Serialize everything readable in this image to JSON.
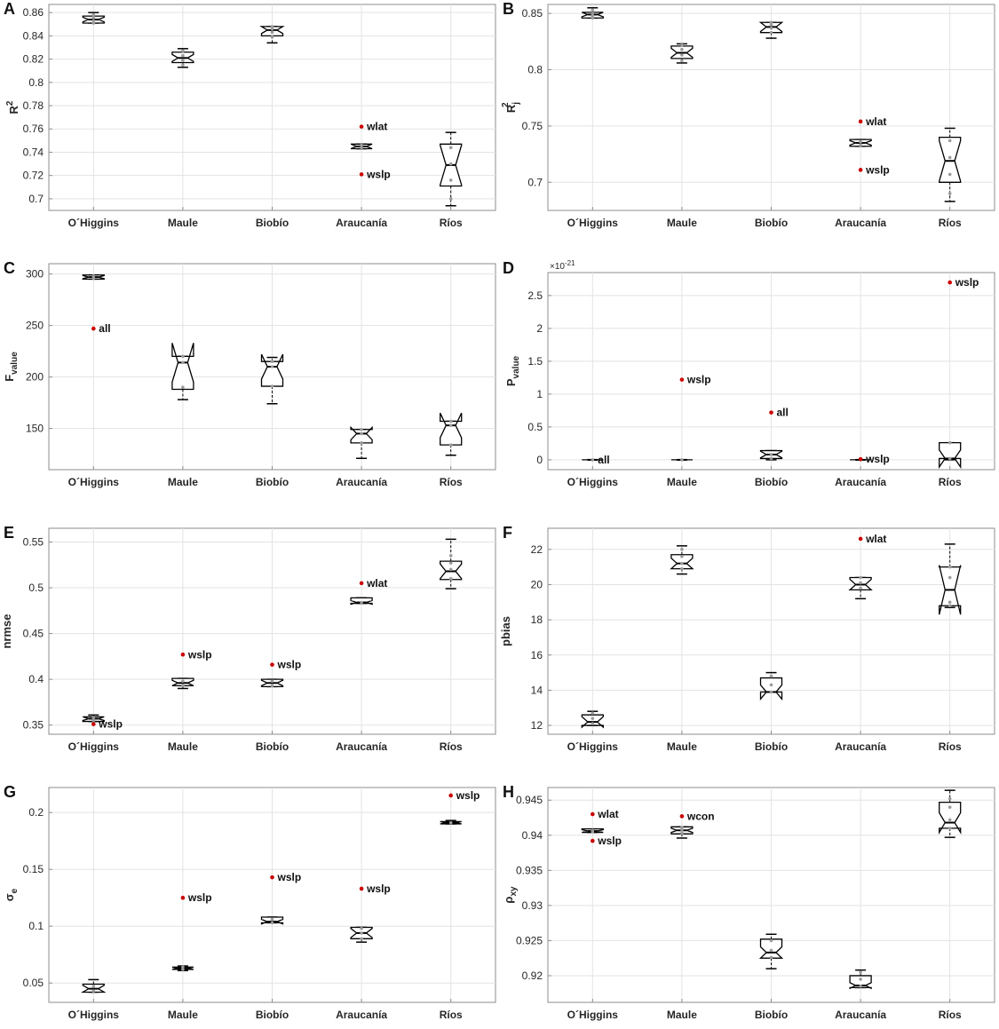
{
  "categories": [
    "O´Higgins",
    "Maule",
    "Biobío",
    "Araucanía",
    "Ríos"
  ],
  "chart_data": [
    {
      "panel": "A",
      "type": "box",
      "ylabel_main": "R",
      "ylabel_sup": "2",
      "ylabel_sub": "",
      "ylim": [
        0.69,
        0.867
      ],
      "yticks": [
        0.7,
        0.72,
        0.74,
        0.76,
        0.78,
        0.8,
        0.82,
        0.84,
        0.86
      ],
      "ytick_labels": [
        "0.7",
        "0.72",
        "0.74",
        "0.76",
        "0.78",
        "0.8",
        "0.82",
        "0.84",
        "0.86"
      ],
      "boxes": [
        {
          "q1": 0.851,
          "median": 0.854,
          "q3": 0.857,
          "wlo": 0.851,
          "whi": 0.86,
          "notch": 0.002,
          "pts": [
            0.851,
            0.853,
            0.856,
            0.858
          ]
        },
        {
          "q1": 0.817,
          "median": 0.821,
          "q3": 0.826,
          "wlo": 0.813,
          "whi": 0.829,
          "notch": 0.003,
          "pts": [
            0.815,
            0.819,
            0.823,
            0.827
          ]
        },
        {
          "q1": 0.84,
          "median": 0.845,
          "q3": 0.848,
          "wlo": 0.834,
          "whi": 0.848,
          "notch": 0.003,
          "pts": [
            0.839,
            0.843,
            0.846,
            0.848
          ]
        },
        {
          "q1": 0.743,
          "median": 0.745,
          "q3": 0.747,
          "wlo": 0.743,
          "whi": 0.747,
          "notch": 0.002,
          "pts": [
            0.744,
            0.746
          ],
          "outliers": [
            {
              "v": 0.762,
              "label": "wlat"
            },
            {
              "v": 0.721,
              "label": "wslp"
            }
          ]
        },
        {
          "q1": 0.711,
          "median": 0.729,
          "q3": 0.747,
          "wlo": 0.694,
          "whi": 0.757,
          "notch": 0.017,
          "pts": [
            0.7,
            0.716,
            0.73,
            0.744
          ]
        }
      ]
    },
    {
      "panel": "B",
      "type": "box",
      "ylabel_main": "R",
      "ylabel_sup": "2",
      "ylabel_sub": "j",
      "ylim": [
        0.675,
        0.858
      ],
      "yticks": [
        0.7,
        0.75,
        0.8,
        0.85
      ],
      "ytick_labels": [
        "0.7",
        "0.75",
        "0.8",
        "0.85"
      ],
      "boxes": [
        {
          "q1": 0.846,
          "median": 0.849,
          "q3": 0.851,
          "wlo": 0.846,
          "whi": 0.855,
          "notch": 0.002,
          "pts": [
            0.846,
            0.848,
            0.85,
            0.853
          ]
        },
        {
          "q1": 0.81,
          "median": 0.815,
          "q3": 0.821,
          "wlo": 0.806,
          "whi": 0.823,
          "notch": 0.004,
          "pts": [
            0.808,
            0.813,
            0.818,
            0.822
          ]
        },
        {
          "q1": 0.833,
          "median": 0.838,
          "q3": 0.842,
          "wlo": 0.828,
          "whi": 0.842,
          "notch": 0.004,
          "pts": [
            0.833,
            0.837,
            0.84,
            0.842
          ]
        },
        {
          "q1": 0.732,
          "median": 0.735,
          "q3": 0.738,
          "wlo": 0.732,
          "whi": 0.738,
          "notch": 0.002,
          "pts": [
            0.733,
            0.736
          ],
          "outliers": [
            {
              "v": 0.754,
              "label": "wlat"
            },
            {
              "v": 0.711,
              "label": "wslp"
            }
          ]
        },
        {
          "q1": 0.7,
          "median": 0.719,
          "q3": 0.74,
          "wlo": 0.683,
          "whi": 0.748,
          "notch": 0.018,
          "pts": [
            0.69,
            0.707,
            0.722,
            0.737
          ]
        }
      ]
    },
    {
      "panel": "C",
      "type": "box",
      "ylabel_main": "F",
      "ylabel_sup": "",
      "ylabel_sub": "value",
      "ylim": [
        110,
        310
      ],
      "yticks": [
        150,
        200,
        250,
        300
      ],
      "ytick_labels": [
        "150",
        "200",
        "250",
        "300"
      ],
      "boxes": [
        {
          "q1": 295,
          "median": 297,
          "q3": 299,
          "wlo": 295,
          "whi": 299,
          "notch": 1.5,
          "pts": [
            296,
            298
          ],
          "outliers": [
            {
              "v": 247,
              "label": "all"
            }
          ]
        },
        {
          "q1": 188,
          "median": 214,
          "q3": 220,
          "wlo": 178,
          "whi": 220,
          "notch": 19,
          "pts": [
            190,
            214,
            220
          ]
        },
        {
          "q1": 191,
          "median": 210,
          "q3": 215,
          "wlo": 174,
          "whi": 219,
          "notch": 12,
          "pts": [
            191,
            210,
            215
          ]
        },
        {
          "q1": 136,
          "median": 145,
          "q3": 149,
          "wlo": 121,
          "whi": 149,
          "notch": 6,
          "pts": [
            136,
            145,
            149
          ]
        },
        {
          "q1": 134,
          "median": 153,
          "q3": 157,
          "wlo": 124,
          "whi": 157,
          "notch": 12,
          "pts": [
            134,
            153,
            157
          ]
        }
      ]
    },
    {
      "panel": "D",
      "type": "box",
      "ylabel_main": "P",
      "ylabel_sup": "",
      "ylabel_sub": "value",
      "ylim": [
        -0.15,
        2.85
      ],
      "yticks": [
        0,
        0.5,
        1,
        1.5,
        2,
        2.5
      ],
      "ytick_labels": [
        "0",
        "0.5",
        "1",
        "1.5",
        "2",
        "2.5"
      ],
      "exponent_label": "×10",
      "exponent_power": "-21",
      "boxes": [
        {
          "q1": 0,
          "median": 0,
          "q3": 0,
          "wlo": 0,
          "whi": 0,
          "notch": 0,
          "pts": [
            0
          ],
          "outliers": [
            {
              "v": 0,
              "label": "all",
              "dot": false
            }
          ]
        },
        {
          "q1": 0,
          "median": 0,
          "q3": 0,
          "wlo": 0,
          "whi": 0,
          "notch": 0,
          "pts": [
            0
          ],
          "outliers": [
            {
              "v": 1.22,
              "label": "wslp"
            }
          ]
        },
        {
          "q1": 0.02,
          "median": 0.08,
          "q3": 0.14,
          "wlo": 0.0,
          "whi": 0.14,
          "notch": 0.05,
          "pts": [
            0.02,
            0.08
          ],
          "outliers": [
            {
              "v": 0.72,
              "label": "all"
            }
          ]
        },
        {
          "q1": 0,
          "median": 0,
          "q3": 0,
          "wlo": 0,
          "whi": 0,
          "notch": 0,
          "pts": [
            0
          ],
          "outliers": [
            {
              "v": 0.01,
              "label": "wslp"
            }
          ]
        },
        {
          "q1": 0.02,
          "median": 0.02,
          "q3": 0.26,
          "wlo": 0.0,
          "whi": 0.26,
          "notch": 0.13,
          "pts": [
            0.02,
            0.26
          ],
          "outliers": [
            {
              "v": 2.7,
              "label": "wslp"
            }
          ]
        }
      ]
    },
    {
      "panel": "E",
      "type": "box",
      "ylabel_main": "nrmse",
      "ylabel_sup": "",
      "ylabel_sub": "",
      "ylim": [
        0.34,
        0.565
      ],
      "yticks": [
        0.35,
        0.4,
        0.45,
        0.5,
        0.55
      ],
      "ytick_labels": [
        "0.35",
        "0.4",
        "0.45",
        "0.5",
        "0.55"
      ],
      "boxes": [
        {
          "q1": 0.354,
          "median": 0.357,
          "q3": 0.359,
          "wlo": 0.354,
          "whi": 0.361,
          "notch": 0.002,
          "pts": [
            0.355,
            0.358
          ],
          "outliers": [
            {
              "v": 0.351,
              "label": "wslp"
            }
          ]
        },
        {
          "q1": 0.393,
          "median": 0.396,
          "q3": 0.401,
          "wlo": 0.39,
          "whi": 0.401,
          "notch": 0.003,
          "pts": [
            0.393,
            0.398
          ],
          "outliers": [
            {
              "v": 0.427,
              "label": "wslp"
            }
          ]
        },
        {
          "q1": 0.392,
          "median": 0.396,
          "q3": 0.4,
          "wlo": 0.392,
          "whi": 0.4,
          "notch": 0.003,
          "pts": [
            0.393,
            0.398
          ],
          "outliers": [
            {
              "v": 0.416,
              "label": "wslp"
            }
          ]
        },
        {
          "q1": 0.483,
          "median": 0.484,
          "q3": 0.489,
          "wlo": 0.483,
          "whi": 0.489,
          "notch": 0.002,
          "pts": [
            0.484
          ],
          "outliers": [
            {
              "v": 0.505,
              "label": "wlat"
            }
          ]
        },
        {
          "q1": 0.509,
          "median": 0.518,
          "q3": 0.529,
          "wlo": 0.499,
          "whi": 0.553,
          "notch": 0.008,
          "pts": [
            0.51,
            0.52,
            0.527,
            0.535
          ]
        }
      ]
    },
    {
      "panel": "F",
      "type": "box",
      "ylabel_main": "pbias",
      "ylabel_sup": "",
      "ylabel_sub": "",
      "ylim": [
        11.5,
        23.2
      ],
      "yticks": [
        12,
        14,
        16,
        18,
        20,
        22
      ],
      "ytick_labels": [
        "12",
        "14",
        "16",
        "18",
        "20",
        "22"
      ],
      "boxes": [
        {
          "q1": 12.0,
          "median": 12.2,
          "q3": 12.6,
          "wlo": 12.0,
          "whi": 12.8,
          "notch": 0.3,
          "pts": [
            12.1,
            12.4,
            12.7
          ]
        },
        {
          "q1": 20.9,
          "median": 21.2,
          "q3": 21.7,
          "wlo": 20.6,
          "whi": 22.2,
          "notch": 0.3,
          "pts": [
            20.9,
            21.2,
            21.6,
            22.0
          ]
        },
        {
          "q1": 13.9,
          "median": 13.9,
          "q3": 14.7,
          "wlo": 13.9,
          "whi": 15.0,
          "notch": 0.4,
          "pts": [
            13.9,
            14.3,
            14.8
          ]
        },
        {
          "q1": 19.7,
          "median": 20.0,
          "q3": 20.4,
          "wlo": 19.2,
          "whi": 20.4,
          "notch": 0.3,
          "pts": [
            19.8,
            20.1,
            20.4
          ],
          "outliers": [
            {
              "v": 22.6,
              "label": "wlat"
            }
          ]
        },
        {
          "q1": 18.8,
          "median": 19.7,
          "q3": 21.0,
          "wlo": 18.7,
          "whi": 22.3,
          "notch": 1.4,
          "pts": [
            18.8,
            19.0,
            20.4,
            21.0
          ]
        }
      ]
    },
    {
      "panel": "G",
      "type": "box",
      "ylabel_main": "σ",
      "ylabel_sup": "",
      "ylabel_sub": "e",
      "ylim": [
        0.033,
        0.222
      ],
      "yticks": [
        0.05,
        0.1,
        0.15,
        0.2
      ],
      "ytick_labels": [
        "0.05",
        "0.1",
        "0.15",
        "0.2"
      ],
      "boxes": [
        {
          "q1": 0.042,
          "median": 0.045,
          "q3": 0.049,
          "wlo": 0.042,
          "whi": 0.053,
          "notch": 0.003,
          "pts": [
            0.043,
            0.047
          ]
        },
        {
          "q1": 0.062,
          "median": 0.063,
          "q3": 0.064,
          "wlo": 0.061,
          "whi": 0.065,
          "notch": 0.001,
          "pts": [
            0.062,
            0.064
          ],
          "outliers": [
            {
              "v": 0.125,
              "label": "wslp"
            }
          ]
        },
        {
          "q1": 0.103,
          "median": 0.104,
          "q3": 0.108,
          "wlo": 0.103,
          "whi": 0.108,
          "notch": 0.002,
          "pts": [
            0.103,
            0.106
          ],
          "outliers": [
            {
              "v": 0.143,
              "label": "wslp"
            }
          ]
        },
        {
          "q1": 0.089,
          "median": 0.094,
          "q3": 0.099,
          "wlo": 0.086,
          "whi": 0.099,
          "notch": 0.004,
          "pts": [
            0.089,
            0.094,
            0.098
          ],
          "outliers": [
            {
              "v": 0.133,
              "label": "wslp"
            }
          ]
        },
        {
          "q1": 0.19,
          "median": 0.191,
          "q3": 0.192,
          "wlo": 0.19,
          "whi": 0.193,
          "notch": 0.001,
          "pts": [
            0.191
          ],
          "outliers": [
            {
              "v": 0.215,
              "label": "wslp"
            }
          ]
        }
      ]
    },
    {
      "panel": "H",
      "type": "box",
      "ylabel_main": "ρ",
      "ylabel_sup": "",
      "ylabel_sub": "xy",
      "ylim": [
        0.9162,
        0.9468
      ],
      "yticks": [
        0.92,
        0.925,
        0.93,
        0.935,
        0.94,
        0.945
      ],
      "ytick_labels": [
        "0.92",
        "0.925",
        "0.93",
        "0.935",
        "0.94",
        "0.945"
      ],
      "boxes": [
        {
          "q1": 0.9404,
          "median": 0.9406,
          "q3": 0.9409,
          "wlo": 0.9404,
          "whi": 0.9409,
          "notch": 0.0002,
          "pts": [
            0.9405,
            0.9407
          ],
          "outliers": [
            {
              "v": 0.943,
              "label": "wlat"
            },
            {
              "v": 0.9392,
              "label": "wslp"
            }
          ]
        },
        {
          "q1": 0.9402,
          "median": 0.9407,
          "q3": 0.9412,
          "wlo": 0.9396,
          "whi": 0.9412,
          "notch": 0.0003,
          "pts": [
            0.9403,
            0.9408,
            0.9411
          ],
          "outliers": [
            {
              "v": 0.9427,
              "label": "wcon"
            }
          ]
        },
        {
          "q1": 0.9225,
          "median": 0.9233,
          "q3": 0.9252,
          "wlo": 0.921,
          "whi": 0.9259,
          "notch": 0.0008,
          "pts": [
            0.9226,
            0.9236,
            0.925
          ]
        },
        {
          "q1": 0.9183,
          "median": 0.9186,
          "q3": 0.92,
          "wlo": 0.9183,
          "whi": 0.9208,
          "notch": 0.0004,
          "pts": [
            0.9185,
            0.9195,
            0.9205
          ]
        },
        {
          "q1": 0.941,
          "median": 0.9418,
          "q3": 0.9447,
          "wlo": 0.9397,
          "whi": 0.9464,
          "notch": 0.0014,
          "pts": [
            0.941,
            0.9422,
            0.944,
            0.9452
          ]
        }
      ]
    }
  ]
}
